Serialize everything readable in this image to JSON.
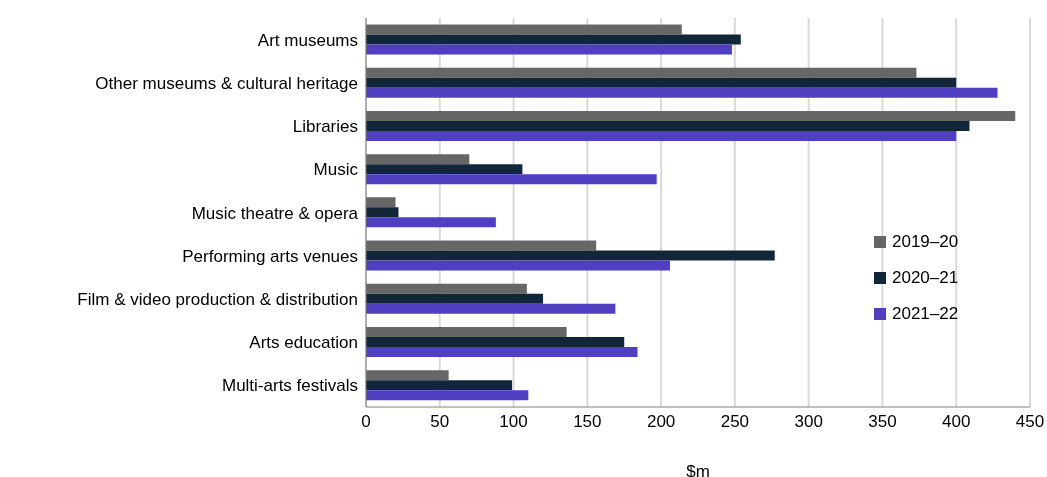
{
  "chart_data": {
    "type": "bar",
    "orientation": "horizontal",
    "xlabel": "$m",
    "categories": [
      "Art museums",
      "Other museums & cultural heritage",
      "Libraries",
      "Music",
      "Music theatre & opera",
      "Performing arts venues",
      "Film & video production & distribution",
      "Arts education",
      "Multi-arts festivals"
    ],
    "series": [
      {
        "name": "2019–20",
        "color": "#666666",
        "values": [
          214,
          373,
          440,
          70,
          20,
          156,
          109,
          136,
          56
        ]
      },
      {
        "name": "2020–21",
        "color": "#12263a",
        "values": [
          254,
          400,
          409,
          106,
          22,
          277,
          120,
          175,
          99
        ]
      },
      {
        "name": "2021–22",
        "color": "#513fc1",
        "values": [
          248,
          428,
          400,
          197,
          88,
          206,
          169,
          184,
          110
        ]
      }
    ],
    "xlim": [
      0,
      450
    ],
    "xticks": [
      0,
      50,
      100,
      150,
      200,
      250,
      300,
      350,
      400,
      450
    ],
    "grid": "x",
    "legend": "right"
  }
}
